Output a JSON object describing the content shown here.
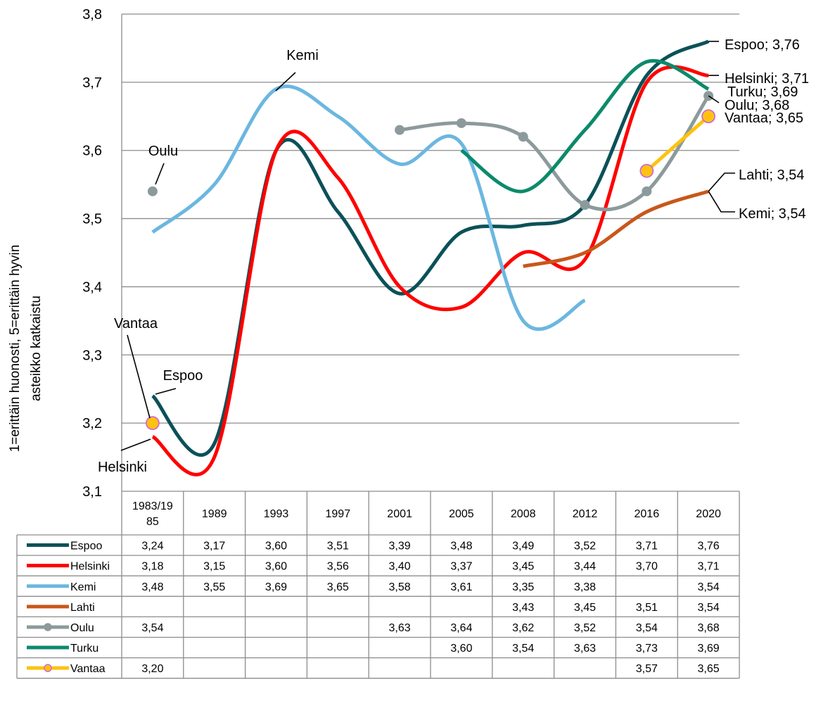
{
  "chart_data": {
    "type": "line",
    "ylabel_line1": "1=erittäin huonosti, 5=erittäin hyvin",
    "ylabel_line2": "asteikko katkaistu",
    "ylim": [
      3.1,
      3.8
    ],
    "yticks": [
      3.1,
      3.2,
      3.3,
      3.4,
      3.5,
      3.6,
      3.7,
      3.8
    ],
    "ytick_labels": [
      "3,1",
      "3,2",
      "3,3",
      "3,4",
      "3,5",
      "3,6",
      "3,7",
      "3,8"
    ],
    "categories": [
      "1983/1985",
      "1989",
      "1993",
      "1997",
      "2001",
      "2005",
      "2008",
      "2012",
      "2016",
      "2020"
    ],
    "category_labels": [
      [
        "1983/19",
        "85"
      ],
      [
        "1989"
      ],
      [
        "1993"
      ],
      [
        "1997"
      ],
      [
        "2001"
      ],
      [
        "2005"
      ],
      [
        "2008"
      ],
      [
        "2012"
      ],
      [
        "2016"
      ],
      [
        "2020"
      ]
    ],
    "grid": true,
    "smooth": true,
    "series": [
      {
        "name": "Espoo",
        "color": "#0b5158",
        "markers": false,
        "values": [
          3.24,
          3.17,
          3.6,
          3.51,
          3.39,
          3.48,
          3.49,
          3.52,
          3.71,
          3.76
        ],
        "cells": [
          "3,24",
          "3,17",
          "3,60",
          "3,51",
          "3,39",
          "3,48",
          "3,49",
          "3,52",
          "3,71",
          "3,76"
        ]
      },
      {
        "name": "Helsinki",
        "color": "#ff0000",
        "markers": false,
        "values": [
          3.18,
          3.15,
          3.6,
          3.56,
          3.4,
          3.37,
          3.45,
          3.44,
          3.7,
          3.71
        ],
        "cells": [
          "3,18",
          "3,15",
          "3,60",
          "3,56",
          "3,40",
          "3,37",
          "3,45",
          "3,44",
          "3,70",
          "3,71"
        ]
      },
      {
        "name": "Kemi",
        "color": "#6bb7e0",
        "markers": false,
        "values": [
          3.48,
          3.55,
          3.69,
          3.65,
          3.58,
          3.61,
          3.35,
          3.38,
          null,
          3.54
        ],
        "cells": [
          "3,48",
          "3,55",
          "3,69",
          "3,65",
          "3,58",
          "3,61",
          "3,35",
          "3,38",
          "",
          "3,54"
        ]
      },
      {
        "name": "Lahti",
        "color": "#c9571a",
        "markers": false,
        "values": [
          null,
          null,
          null,
          null,
          null,
          null,
          3.43,
          3.45,
          3.51,
          3.54
        ],
        "cells": [
          "",
          "",
          "",
          "",
          "",
          "",
          "3,43",
          "3,45",
          "3,51",
          "3,54"
        ]
      },
      {
        "name": "Oulu",
        "color": "#8c9a9c",
        "markers": true,
        "marker_fill": "#8c9a9c",
        "values": [
          3.54,
          null,
          null,
          null,
          3.63,
          3.64,
          3.62,
          3.52,
          3.54,
          3.68
        ],
        "cells": [
          "3,54",
          "",
          "",
          "",
          "3,63",
          "3,64",
          "3,62",
          "3,52",
          "3,54",
          "3,68"
        ]
      },
      {
        "name": "Turku",
        "color": "#0b8a6a",
        "markers": false,
        "values": [
          null,
          null,
          null,
          null,
          null,
          3.6,
          3.54,
          3.63,
          3.73,
          3.69
        ],
        "cells": [
          "",
          "",
          "",
          "",
          "",
          "3,60",
          "3,54",
          "3,63",
          "3,73",
          "3,69"
        ]
      },
      {
        "name": "Vantaa",
        "color": "#ffc20e",
        "markers": true,
        "marker_fill": "#ffc20e",
        "marker_stroke": "#d06ad0",
        "values": [
          3.2,
          null,
          null,
          null,
          null,
          null,
          null,
          null,
          3.57,
          3.65
        ],
        "cells": [
          "3,20",
          "",
          "",
          "",
          "",
          "",
          "",
          "",
          "3,57",
          "3,65"
        ]
      }
    ],
    "annotations": [
      {
        "text": "Espoo; 3,76",
        "series": "Espoo"
      },
      {
        "text": "Helsinki; 3,71",
        "series": "Helsinki"
      },
      {
        "text": "Turku; 3,69",
        "series": "Turku"
      },
      {
        "text": "Oulu; 3,68",
        "series": "Oulu"
      },
      {
        "text": "Vantaa; 3,65",
        "series": "Vantaa"
      },
      {
        "text": "Lahti; 3,54",
        "series": "Lahti"
      },
      {
        "text": "Kemi; 3,54",
        "series": "Kemi"
      },
      {
        "text": "Kemi",
        "series": "Kemi"
      },
      {
        "text": "Oulu",
        "series": "Oulu"
      },
      {
        "text": "Vantaa",
        "series": "Vantaa"
      },
      {
        "text": "Espoo",
        "series": "Espoo"
      },
      {
        "text": "Helsinki",
        "series": "Helsinki"
      }
    ]
  }
}
